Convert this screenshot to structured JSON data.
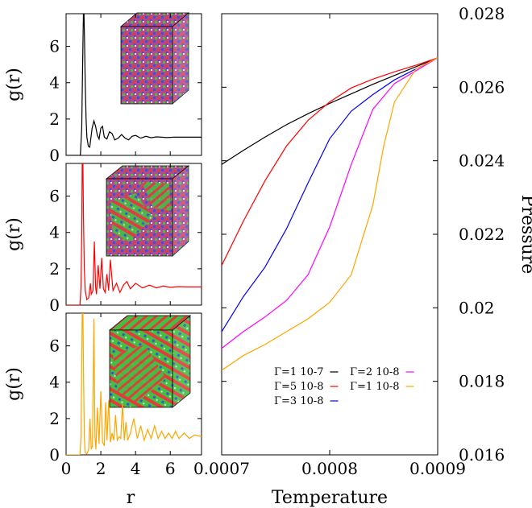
{
  "chart_data": [
    {
      "type": "line",
      "panel": "top",
      "xlabel": "",
      "ylabel": "g(r)",
      "xlim": [
        0,
        7.8
      ],
      "ylim": [
        0,
        7.8
      ],
      "y_ticks": [
        "0",
        "2",
        "4",
        "6"
      ],
      "line_color": "#000000",
      "inset": "disordered particle configuration (cube snapshot)",
      "series": [
        {
          "name": "",
          "x": [
            0,
            0.82,
            0.9,
            0.95,
            1.0,
            1.03,
            1.06,
            1.1,
            1.15,
            1.2,
            1.28,
            1.36,
            1.42,
            1.5,
            1.6,
            1.7,
            1.8,
            1.9,
            2.0,
            2.1,
            2.2,
            2.35,
            2.5,
            2.65,
            2.8,
            3.0,
            3.2,
            3.4,
            3.6,
            3.8,
            4.0,
            4.3,
            4.6,
            4.9,
            5.2,
            5.5,
            5.8,
            6.2,
            6.6,
            7.0,
            7.4,
            7.8
          ],
          "y": [
            0,
            0,
            1.5,
            5.0,
            7.8,
            7.8,
            6.5,
            4.0,
            2.0,
            1.0,
            0.5,
            0.45,
            0.9,
            1.5,
            1.9,
            1.6,
            1.1,
            0.9,
            1.5,
            1.6,
            1.0,
            0.9,
            1.3,
            1.2,
            0.85,
            0.95,
            1.15,
            0.95,
            0.85,
            1.05,
            1.1,
            0.95,
            1.05,
            0.97,
            1.02,
            1.0,
            0.98,
            1.0,
            1.0,
            1.0,
            1.0,
            1.0
          ]
        }
      ]
    },
    {
      "type": "line",
      "panel": "middle",
      "xlabel": "",
      "ylabel": "g(r)",
      "xlim": [
        0,
        7.8
      ],
      "ylim": [
        0,
        7.8
      ],
      "y_ticks": [
        "0",
        "2",
        "4",
        "6"
      ],
      "line_color": "#ff0000",
      "inset": "partially crystallized particle configuration (cube snapshot)",
      "series": [
        {
          "name": "",
          "x": [
            0,
            0.8,
            0.86,
            0.9,
            0.93,
            0.97,
            1.0,
            1.05,
            1.1,
            1.2,
            1.3,
            1.4,
            1.45,
            1.55,
            1.63,
            1.7,
            1.75,
            1.85,
            1.95,
            2.05,
            2.15,
            2.25,
            2.35,
            2.45,
            2.55,
            2.7,
            2.9,
            3.1,
            3.3,
            3.5,
            3.7,
            4.0,
            4.4,
            4.8,
            5.2,
            5.6,
            6.0,
            6.5,
            7.0,
            7.5,
            7.8
          ],
          "y": [
            0,
            0,
            1.0,
            4.0,
            7.8,
            7.8,
            5.0,
            2.0,
            0.8,
            0.3,
            0.4,
            1.2,
            0.6,
            0.8,
            3.5,
            1.0,
            0.6,
            2.2,
            0.9,
            2.6,
            0.9,
            0.7,
            1.7,
            0.8,
            2.5,
            0.8,
            1.2,
            0.7,
            1.1,
            1.3,
            0.9,
            1.2,
            0.95,
            1.1,
            0.95,
            1.05,
            0.98,
            1.02,
            1.0,
            1.0,
            1.0
          ]
        }
      ]
    },
    {
      "type": "line",
      "panel": "bottom",
      "xlabel": "r",
      "ylabel": "g(r)",
      "xlim": [
        0,
        7.8
      ],
      "ylim": [
        0,
        7.8
      ],
      "x_ticks": [
        "0",
        "2",
        "4",
        "6"
      ],
      "y_ticks": [
        "0",
        "2",
        "4",
        "6"
      ],
      "line_color": "#ffa500",
      "inset": "largely crystallized particle configuration (cube snapshot)",
      "series": [
        {
          "name": "",
          "x": [
            0,
            0.8,
            0.86,
            0.9,
            0.93,
            0.97,
            1.0,
            1.05,
            1.1,
            1.2,
            1.3,
            1.38,
            1.45,
            1.52,
            1.6,
            1.66,
            1.72,
            1.8,
            1.9,
            2.0,
            2.1,
            2.2,
            2.28,
            2.36,
            2.45,
            2.55,
            2.65,
            2.75,
            2.85,
            2.95,
            3.05,
            3.15,
            3.25,
            3.35,
            3.45,
            3.55,
            3.7,
            3.9,
            4.1,
            4.3,
            4.5,
            4.7,
            4.9,
            5.1,
            5.3,
            5.5,
            5.7,
            5.9,
            6.1,
            6.3,
            6.5,
            6.8,
            7.1,
            7.4,
            7.8
          ],
          "y": [
            0,
            0,
            1.0,
            5.0,
            7.8,
            7.8,
            5.0,
            1.0,
            0.1,
            0.05,
            0.3,
            2.0,
            0.3,
            0.5,
            7.5,
            1.0,
            0.3,
            2.6,
            0.6,
            3.5,
            0.7,
            0.5,
            2.9,
            0.8,
            3.0,
            0.7,
            1.2,
            0.8,
            2.2,
            0.8,
            1.0,
            0.9,
            2.8,
            0.8,
            1.8,
            0.8,
            1.2,
            2.0,
            0.9,
            1.6,
            0.8,
            1.4,
            0.9,
            1.6,
            0.9,
            1.3,
            0.9,
            1.2,
            0.9,
            1.3,
            0.9,
            1.2,
            0.9,
            1.1,
            1.0
          ]
        }
      ]
    },
    {
      "type": "line",
      "panel": "right",
      "xlabel": "Temperature",
      "ylabel": "Pressure",
      "xlim": [
        0.0007,
        0.0009
      ],
      "ylim": [
        0.016,
        0.028
      ],
      "x_ticks": [
        "0.0007",
        "0.0008",
        "0.0009"
      ],
      "y_ticks": [
        "0.016",
        "0.018",
        "0.02",
        "0.022",
        "0.024",
        "0.026",
        "0.028"
      ],
      "legend_position": "bottom-right",
      "series": [
        {
          "name": "Γ=1 10-7",
          "color": "#000000",
          "x": [
            0.0007,
            0.00072,
            0.00074,
            0.00076,
            0.00078,
            0.0008,
            0.00082,
            0.00084,
            0.00086,
            0.00088,
            0.0009
          ],
          "y": [
            0.0239,
            0.02428,
            0.02464,
            0.02498,
            0.02528,
            0.02556,
            0.02582,
            0.02608,
            0.02632,
            0.02656,
            0.0268
          ]
        },
        {
          "name": "Γ=5 10-8",
          "color": "#ff0000",
          "x": [
            0.0007,
            0.00072,
            0.00074,
            0.00076,
            0.00078,
            0.0008,
            0.00082,
            0.00084,
            0.00086,
            0.00088,
            0.0009
          ],
          "y": [
            0.02115,
            0.02235,
            0.02345,
            0.0244,
            0.0251,
            0.0256,
            0.02598,
            0.02622,
            0.02642,
            0.0266,
            0.0268
          ]
        },
        {
          "name": "Γ=3 10-8",
          "color": "#0000ff",
          "x": [
            0.0007,
            0.00072,
            0.00074,
            0.00076,
            0.00078,
            0.0008,
            0.00082,
            0.00084,
            0.00086,
            0.00088,
            0.0009
          ],
          "y": [
            0.01935,
            0.0203,
            0.0211,
            0.02215,
            0.0234,
            0.0246,
            0.02535,
            0.0258,
            0.0262,
            0.0265,
            0.0268
          ]
        },
        {
          "name": "Γ=2 10-8",
          "color": "#ff00ff",
          "x": [
            0.0007,
            0.00072,
            0.00074,
            0.00076,
            0.00078,
            0.0008,
            0.00082,
            0.00084,
            0.00086,
            0.00088,
            0.0009
          ],
          "y": [
            0.0189,
            0.01935,
            0.01975,
            0.0202,
            0.0209,
            0.0222,
            0.0239,
            0.0254,
            0.0261,
            0.02645,
            0.0268
          ]
        },
        {
          "name": "Γ=1 10-8",
          "color": "#ffa500",
          "x": [
            0.0007,
            0.00072,
            0.00074,
            0.00076,
            0.00078,
            0.0008,
            0.00082,
            0.00084,
            0.00085,
            0.00086,
            0.00088,
            0.0009
          ],
          "y": [
            0.0183,
            0.0187,
            0.019,
            0.01935,
            0.0197,
            0.02015,
            0.0209,
            0.0228,
            0.0244,
            0.0256,
            0.0265,
            0.0268
          ]
        }
      ]
    }
  ]
}
